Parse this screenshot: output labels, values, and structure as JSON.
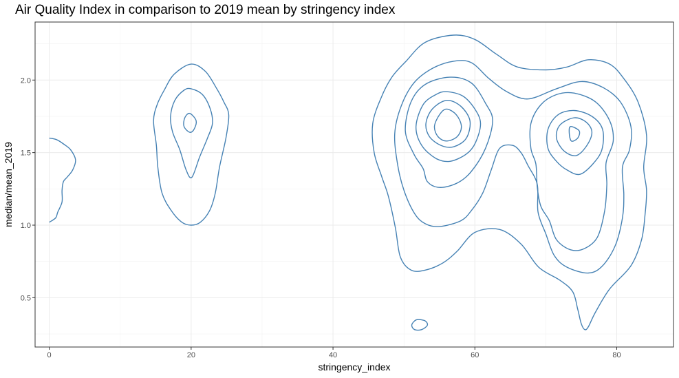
{
  "chart_data": {
    "type": "contour",
    "title": "Air Quality Index in comparison to 2019 mean by stringency index",
    "xlabel": "stringency_index",
    "ylabel": "median/mean_2019",
    "xlim": [
      -2,
      88
    ],
    "ylim": [
      0.16,
      2.4
    ],
    "x_ticks": [
      0,
      20,
      40,
      60,
      80
    ],
    "y_ticks": [
      0.5,
      1.0,
      1.5,
      2.0
    ],
    "x_tick_labels": [
      "0",
      "20",
      "40",
      "60",
      "80"
    ],
    "y_tick_labels": [
      "0.5",
      "1.0",
      "1.5",
      "2.0"
    ],
    "grid": true,
    "line_color": "#4682B4",
    "contours": [
      {
        "closed": false,
        "points": [
          [
            0,
            1.6
          ],
          [
            1,
            1.59
          ],
          [
            2,
            1.56
          ],
          [
            3,
            1.52
          ],
          [
            3.7,
            1.45
          ],
          [
            3.3,
            1.38
          ],
          [
            2.5,
            1.33
          ],
          [
            2,
            1.3
          ],
          [
            1.8,
            1.24
          ],
          [
            1.8,
            1.16
          ],
          [
            1.2,
            1.09
          ],
          [
            0.9,
            1.05
          ],
          [
            0,
            1.02
          ]
        ]
      },
      {
        "closed": true,
        "points": [
          [
            20,
            2.11
          ],
          [
            22,
            2.06
          ],
          [
            23.5,
            1.95
          ],
          [
            24.6,
            1.85
          ],
          [
            25.3,
            1.76
          ],
          [
            24.9,
            1.6
          ],
          [
            24,
            1.4
          ],
          [
            23.4,
            1.22
          ],
          [
            22.6,
            1.1
          ],
          [
            21.3,
            1.02
          ],
          [
            20,
            1.0
          ],
          [
            18.7,
            1.02
          ],
          [
            17.2,
            1.1
          ],
          [
            15.9,
            1.22
          ],
          [
            15.3,
            1.4
          ],
          [
            15.1,
            1.55
          ],
          [
            14.7,
            1.72
          ],
          [
            15.2,
            1.83
          ],
          [
            16.2,
            1.93
          ],
          [
            17.6,
            2.04
          ]
        ]
      },
      {
        "closed": true,
        "points": [
          [
            20,
            1.94
          ],
          [
            21.6,
            1.9
          ],
          [
            22.7,
            1.8
          ],
          [
            23,
            1.7
          ],
          [
            22.3,
            1.6
          ],
          [
            21.2,
            1.47
          ],
          [
            20.1,
            1.33
          ],
          [
            19.3,
            1.38
          ],
          [
            18.4,
            1.52
          ],
          [
            17.4,
            1.64
          ],
          [
            17.1,
            1.75
          ],
          [
            17.7,
            1.86
          ],
          [
            19,
            1.93
          ]
        ]
      },
      {
        "closed": true,
        "points": [
          [
            19.8,
            1.77
          ],
          [
            20.7,
            1.72
          ],
          [
            20.4,
            1.66
          ],
          [
            19.8,
            1.64
          ],
          [
            19,
            1.68
          ],
          [
            19.1,
            1.74
          ]
        ]
      },
      {
        "closed": true,
        "points": [
          [
            57,
            2.31
          ],
          [
            60,
            2.28
          ],
          [
            63,
            2.18
          ],
          [
            66,
            2.09
          ],
          [
            70,
            2.07
          ],
          [
            73,
            2.09
          ],
          [
            76,
            2.14
          ],
          [
            79,
            2.11
          ],
          [
            81,
            2.01
          ],
          [
            83,
            1.85
          ],
          [
            84.2,
            1.62
          ],
          [
            83.8,
            1.4
          ],
          [
            84.2,
            1.24
          ],
          [
            84,
            1.08
          ],
          [
            83.5,
            0.9
          ],
          [
            82,
            0.72
          ],
          [
            79,
            0.56
          ],
          [
            77,
            0.4
          ],
          [
            76,
            0.3
          ],
          [
            75.5,
            0.28
          ],
          [
            75,
            0.32
          ],
          [
            74.5,
            0.42
          ],
          [
            73.8,
            0.54
          ],
          [
            72,
            0.62
          ],
          [
            69,
            0.71
          ],
          [
            66.5,
            0.87
          ],
          [
            63.5,
            0.97
          ],
          [
            60,
            0.95
          ],
          [
            57.5,
            0.82
          ],
          [
            55.5,
            0.74
          ],
          [
            53,
            0.69
          ],
          [
            51,
            0.69
          ],
          [
            49.5,
            0.78
          ],
          [
            48.8,
            0.98
          ],
          [
            47.8,
            1.2
          ],
          [
            46.9,
            1.33
          ],
          [
            45.8,
            1.5
          ],
          [
            45.6,
            1.7
          ],
          [
            46.8,
            1.88
          ],
          [
            48.3,
            2.02
          ],
          [
            50.3,
            2.13
          ],
          [
            53,
            2.26
          ]
        ]
      },
      {
        "closed": true,
        "points": [
          [
            57,
            2.13
          ],
          [
            59.5,
            2.12
          ],
          [
            62,
            2.01
          ],
          [
            64.5,
            1.92
          ],
          [
            67.5,
            1.87
          ],
          [
            71.5,
            1.94
          ],
          [
            75,
            1.99
          ],
          [
            78,
            1.95
          ],
          [
            80.5,
            1.85
          ],
          [
            82,
            1.68
          ],
          [
            81.8,
            1.52
          ],
          [
            80.8,
            1.4
          ],
          [
            81,
            1.21
          ],
          [
            80.8,
            1.05
          ],
          [
            79.8,
            0.86
          ],
          [
            78,
            0.72
          ],
          [
            76,
            0.67
          ],
          [
            73,
            0.71
          ],
          [
            71.2,
            0.79
          ],
          [
            70,
            0.94
          ],
          [
            68.9,
            1.09
          ],
          [
            68.8,
            1.28
          ],
          [
            67.5,
            1.41
          ],
          [
            66.5,
            1.5
          ],
          [
            65.3,
            1.55
          ],
          [
            63.5,
            1.53
          ],
          [
            62.3,
            1.38
          ],
          [
            61.1,
            1.22
          ],
          [
            59.5,
            1.1
          ],
          [
            58,
            1.03
          ],
          [
            55,
            0.99
          ],
          [
            53,
            1.01
          ],
          [
            51.5,
            1.08
          ],
          [
            50,
            1.24
          ],
          [
            49.1,
            1.42
          ],
          [
            48.7,
            1.63
          ],
          [
            49.6,
            1.82
          ],
          [
            51.4,
            1.98
          ],
          [
            54,
            2.08
          ]
        ]
      },
      {
        "closed": true,
        "points": [
          [
            56.5,
            2.02
          ],
          [
            59.5,
            1.98
          ],
          [
            61.5,
            1.84
          ],
          [
            62.5,
            1.72
          ],
          [
            61.5,
            1.53
          ],
          [
            59.5,
            1.37
          ],
          [
            57.5,
            1.29
          ],
          [
            55,
            1.26
          ],
          [
            53.3,
            1.3
          ],
          [
            52.7,
            1.39
          ],
          [
            51.4,
            1.49
          ],
          [
            50.2,
            1.65
          ],
          [
            51,
            1.85
          ],
          [
            53,
            1.97
          ]
        ]
      },
      {
        "closed": true,
        "points": [
          [
            56,
            1.92
          ],
          [
            58.3,
            1.89
          ],
          [
            60,
            1.8
          ],
          [
            60.8,
            1.7
          ],
          [
            60.1,
            1.57
          ],
          [
            58.8,
            1.49
          ],
          [
            56.5,
            1.44
          ],
          [
            54.5,
            1.46
          ],
          [
            52.5,
            1.55
          ],
          [
            51.7,
            1.68
          ],
          [
            52.7,
            1.83
          ],
          [
            54.5,
            1.9
          ]
        ]
      },
      {
        "closed": true,
        "points": [
          [
            56,
            1.86
          ],
          [
            58,
            1.82
          ],
          [
            59.3,
            1.72
          ],
          [
            58.8,
            1.6
          ],
          [
            57,
            1.54
          ],
          [
            55.2,
            1.55
          ],
          [
            53.6,
            1.61
          ],
          [
            53.1,
            1.7
          ],
          [
            54,
            1.8
          ]
        ]
      },
      {
        "closed": true,
        "points": [
          [
            56,
            1.8
          ],
          [
            57.4,
            1.76
          ],
          [
            58.1,
            1.68
          ],
          [
            57.5,
            1.61
          ],
          [
            56,
            1.58
          ],
          [
            54.8,
            1.61
          ],
          [
            54.3,
            1.68
          ],
          [
            55,
            1.76
          ]
        ]
      },
      {
        "closed": true,
        "points": [
          [
            74,
            1.91
          ],
          [
            77,
            1.85
          ],
          [
            79,
            1.72
          ],
          [
            79.5,
            1.58
          ],
          [
            78.5,
            1.43
          ],
          [
            78.6,
            1.28
          ],
          [
            78.3,
            1.1
          ],
          [
            77.3,
            0.92
          ],
          [
            75.5,
            0.84
          ],
          [
            73.5,
            0.83
          ],
          [
            71.5,
            0.9
          ],
          [
            70.5,
            1.03
          ],
          [
            69.3,
            1.13
          ],
          [
            68.8,
            1.26
          ],
          [
            68.6,
            1.42
          ],
          [
            67.9,
            1.53
          ],
          [
            67.9,
            1.7
          ],
          [
            69.3,
            1.83
          ],
          [
            71.5,
            1.9
          ]
        ]
      },
      {
        "closed": true,
        "points": [
          [
            74,
            1.79
          ],
          [
            76.5,
            1.75
          ],
          [
            78,
            1.66
          ],
          [
            77.9,
            1.52
          ],
          [
            76.6,
            1.42
          ],
          [
            74.8,
            1.35
          ],
          [
            73,
            1.38
          ],
          [
            71.5,
            1.44
          ],
          [
            70.3,
            1.53
          ],
          [
            70.3,
            1.66
          ],
          [
            71.7,
            1.76
          ]
        ]
      },
      {
        "closed": true,
        "points": [
          [
            74,
            1.74
          ],
          [
            75.7,
            1.71
          ],
          [
            76.5,
            1.64
          ],
          [
            75.8,
            1.55
          ],
          [
            74.3,
            1.48
          ],
          [
            72.6,
            1.51
          ],
          [
            71.5,
            1.6
          ],
          [
            72,
            1.69
          ]
        ]
      },
      {
        "closed": true,
        "points": [
          [
            73.5,
            1.68
          ],
          [
            74.7,
            1.65
          ],
          [
            74.5,
            1.6
          ],
          [
            73.6,
            1.58
          ],
          [
            73.3,
            1.64
          ]
        ]
      },
      {
        "closed": true,
        "points": [
          [
            52,
            0.35
          ],
          [
            53,
            0.34
          ],
          [
            53.3,
            0.31
          ],
          [
            52.5,
            0.28
          ],
          [
            51.5,
            0.28
          ],
          [
            51.1,
            0.31
          ],
          [
            51.5,
            0.34
          ]
        ]
      }
    ]
  }
}
